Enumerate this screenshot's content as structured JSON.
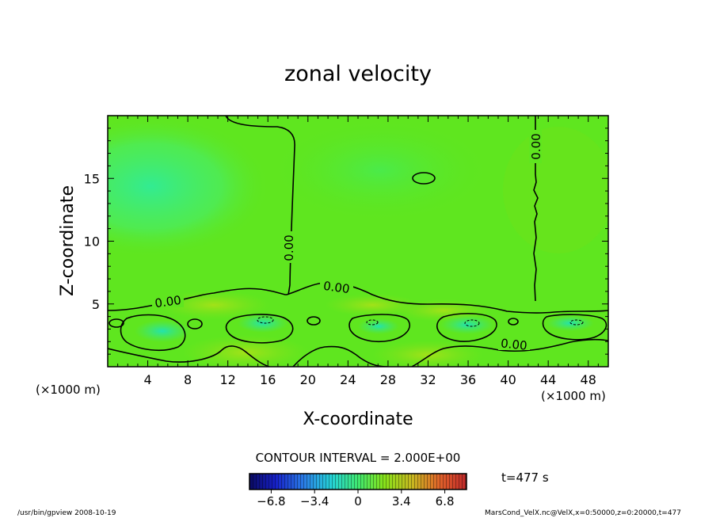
{
  "chart_data": {
    "type": "heatmap",
    "title": "zonal velocity",
    "xlabel": "X-coordinate",
    "ylabel": "Z-coordinate",
    "x_unit": "(×1000 m)",
    "y_unit": "(×1000 m)",
    "x_unit_repeat": "(×1000 m)",
    "xlim": [
      0,
      50
    ],
    "ylim": [
      0,
      20
    ],
    "x_ticks": [
      "4",
      "8",
      "12",
      "16",
      "20",
      "24",
      "28",
      "32",
      "36",
      "40",
      "44",
      "48"
    ],
    "y_ticks": [
      "5",
      "10",
      "15"
    ],
    "x_tick_values": [
      4,
      8,
      12,
      16,
      20,
      24,
      28,
      32,
      36,
      40,
      44,
      48
    ],
    "y_tick_values": [
      5,
      10,
      15
    ],
    "contour_interval_text": "CONTOUR INTERVAL = 2.000E+00",
    "contour_labels": [
      "0.00",
      "0.00",
      "0.00",
      "0.00",
      "0.00"
    ],
    "colorbar": {
      "ticks": [
        "−6.8",
        "−3.4",
        "0",
        "3.4",
        "6.8"
      ],
      "tick_values": [
        -6.8,
        -3.4,
        0,
        3.4,
        6.8
      ],
      "range": [
        -8.5,
        8.5
      ]
    },
    "grid": false,
    "legend": "none"
  },
  "time_label": "t=477 s",
  "footer_left": "/usr/bin/gpview   2008-10-19",
  "footer_right": "MarsCond_VelX.nc@VelX,x=0:50000,z=0:20000,t=477",
  "colors": {
    "field_base": "#5fe61f",
    "upper_left_cyan": "#3cf07a",
    "upper_right_zone": "#66e31c",
    "contour": "#000000"
  }
}
